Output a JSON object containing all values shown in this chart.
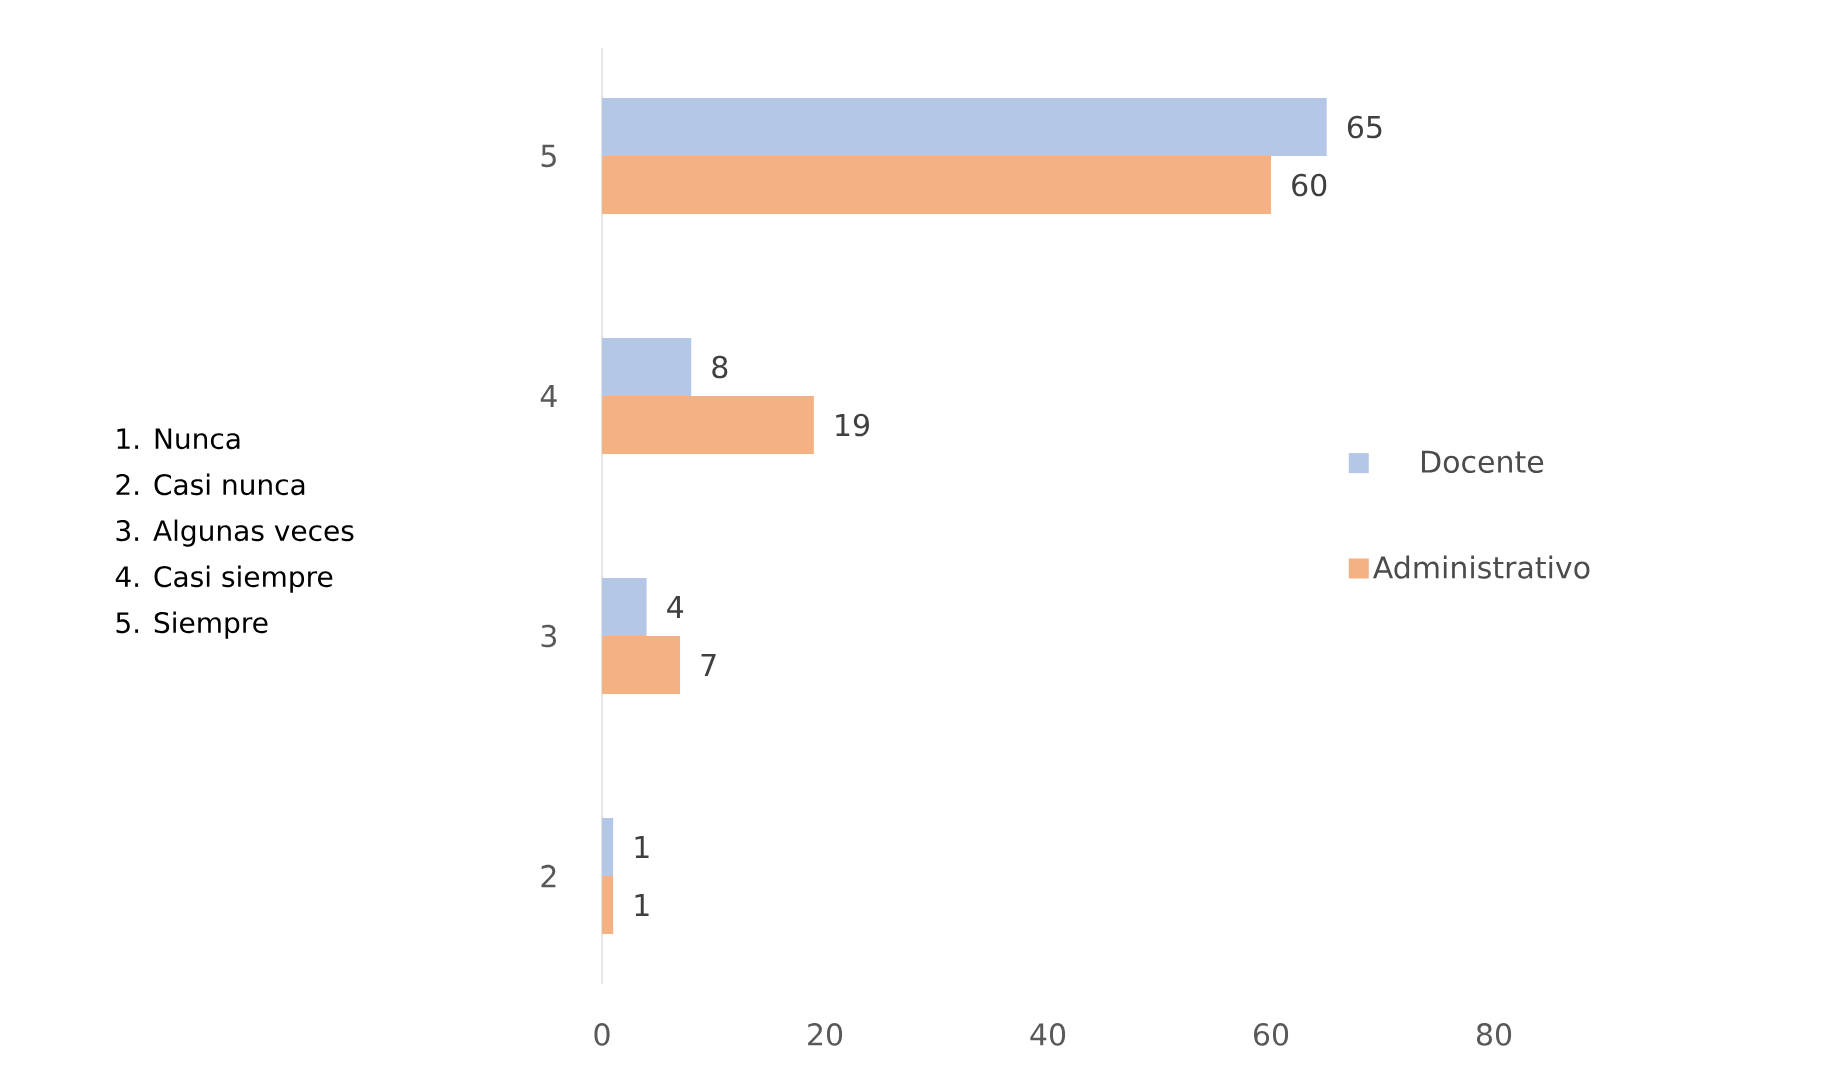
{
  "chart_data": {
    "type": "bar",
    "orientation": "horizontal",
    "categories": [
      "5",
      "4",
      "3",
      "2"
    ],
    "series": [
      {
        "name": "Docente",
        "color": "#b4c7e7",
        "values": [
          65,
          8,
          4,
          1
        ]
      },
      {
        "name": "Administrativo",
        "color": "#f4b183",
        "values": [
          60,
          19,
          7,
          1
        ]
      }
    ],
    "xlim": [
      0,
      80
    ],
    "xticks": [
      0,
      20,
      40,
      60,
      80
    ],
    "data_labels": true,
    "legend": "right",
    "grid": false,
    "annotations": [
      "1. Nunca",
      "2. Casi nunca",
      "3. Algunas veces",
      "4. Casi siempre",
      "5. Siempre"
    ]
  }
}
